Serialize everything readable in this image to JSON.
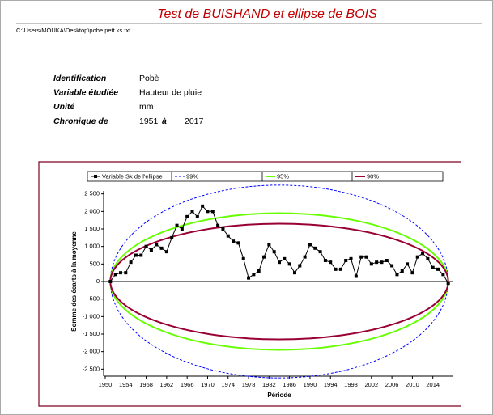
{
  "chart_data": {
    "type": "line",
    "title": "Test de BUISHAND et ellipse de BOIS",
    "file_path": "C:\\Users\\MOUKA\\Desktop\\pobe pett.ks.txt",
    "info": [
      {
        "label": "Identification",
        "value": "Pobè"
      },
      {
        "label": "Variable étudiée",
        "value": "Hauteur de pluie"
      },
      {
        "label": "Unité",
        "value": "mm"
      }
    ],
    "chronique": {
      "label": "Chronique de",
      "start": "1951",
      "word": "à",
      "end": "2017"
    },
    "x_label": "Période",
    "y_label": "Somme des écarts à la moyenne",
    "x": [
      1951,
      1952,
      1953,
      1954,
      1955,
      1956,
      1957,
      1958,
      1959,
      1960,
      1961,
      1962,
      1963,
      1964,
      1965,
      1966,
      1967,
      1968,
      1969,
      1970,
      1971,
      1972,
      1973,
      1974,
      1975,
      1976,
      1977,
      1978,
      1979,
      1980,
      1981,
      1982,
      1983,
      1984,
      1985,
      1986,
      1987,
      1988,
      1989,
      1990,
      1991,
      1992,
      1993,
      1994,
      1995,
      1996,
      1997,
      1998,
      1999,
      2000,
      2001,
      2002,
      2003,
      2004,
      2005,
      2006,
      2007,
      2008,
      2009,
      2010,
      2011,
      2012,
      2013,
      2014,
      2015,
      2016,
      2017
    ],
    "series": [
      {
        "name": "Variable Sk de l'ellipse",
        "color": "#000000",
        "values": [
          0,
          200,
          250,
          250,
          550,
          750,
          750,
          1000,
          900,
          1050,
          950,
          850,
          1250,
          1600,
          1500,
          1850,
          2000,
          1850,
          2150,
          2000,
          2000,
          1600,
          1500,
          1300,
          1150,
          1100,
          650,
          100,
          200,
          300,
          700,
          1050,
          850,
          550,
          650,
          500,
          250,
          450,
          700,
          1050,
          950,
          850,
          600,
          550,
          350,
          350,
          600,
          650,
          150,
          700,
          700,
          500,
          550,
          550,
          600,
          450,
          200,
          300,
          500,
          250,
          700,
          800,
          650,
          400,
          350,
          200,
          -50
        ]
      }
    ],
    "ellipses": [
      {
        "name": "99%",
        "color": "#0000ff",
        "dashed": true,
        "peak": 2750
      },
      {
        "name": "95%",
        "color": "#66ff00",
        "dashed": false,
        "peak": 1950
      },
      {
        "name": "90%",
        "color": "#990033",
        "dashed": false,
        "peak": 1650
      }
    ],
    "xlim": [
      1950,
      2018
    ],
    "xticks": [
      1950,
      1954,
      1958,
      1962,
      1966,
      1970,
      1974,
      1978,
      1982,
      1986,
      1990,
      1994,
      1998,
      2002,
      2006,
      2010,
      2014
    ],
    "ylim": [
      -2700,
      2700
    ],
    "yticks": [
      {
        "value": 2500,
        "label": "2 500"
      },
      {
        "value": 2000,
        "label": "2 000"
      },
      {
        "value": 1500,
        "label": "1 500"
      },
      {
        "value": 1000,
        "label": "1 000"
      },
      500,
      0,
      {
        "value": -500,
        "label": "-500"
      },
      {
        "value": -1000,
        "label": "-1 000"
      },
      {
        "value": -1500,
        "label": "-1 500"
      },
      {
        "value": -2000,
        "label": "-2 000"
      },
      {
        "value": -2500,
        "label": "-2 500"
      }
    ]
  }
}
